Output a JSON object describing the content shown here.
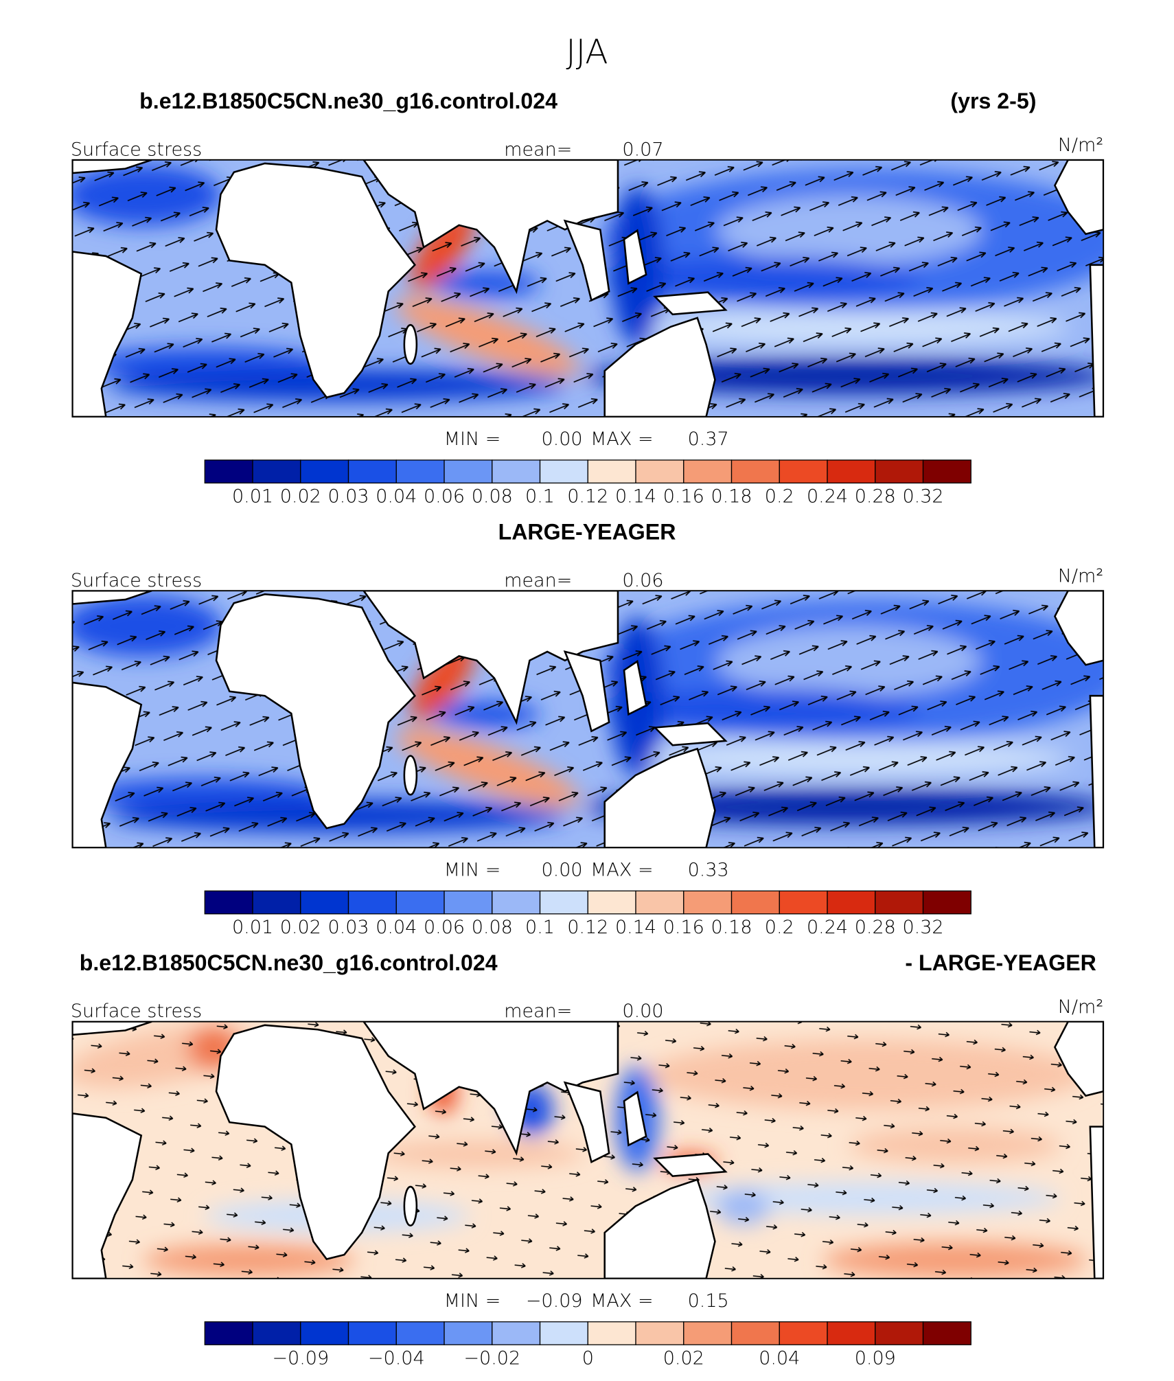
{
  "title": "JJA",
  "panels": [
    {
      "heading_left": "b.e12.B1850C5CN.ne30_g16.control.024",
      "heading_right": "(yrs 2-5)",
      "variable": "Surface stress",
      "mean_label": "mean=",
      "mean": "0.07",
      "units": "N/m²",
      "min_label": "MIN =",
      "min": "0.00",
      "max_label": "MAX =",
      "max": "0.37",
      "colorbar": {
        "colors": [
          "#00007f",
          "#0020a8",
          "#0035d0",
          "#1a50e6",
          "#3a6ef0",
          "#6b96f5",
          "#9bb8f7",
          "#cde0fb",
          "#fde6d2",
          "#f9c5a8",
          "#f59c76",
          "#f0764d",
          "#ec4a24",
          "#d82a10",
          "#b01808",
          "#7f0000"
        ],
        "labels": [
          "0.01",
          "0.02",
          "0.03",
          "0.04",
          "0.06",
          "0.08",
          "0.1",
          "0.12",
          "0.14",
          "0.16",
          "0.18",
          "0.2",
          "0.24",
          "0.28",
          "0.32"
        ]
      }
    },
    {
      "heading_center": "LARGE-YEAGER",
      "variable": "Surface stress",
      "mean_label": "mean=",
      "mean": "0.06",
      "units": "N/m²",
      "min_label": "MIN =",
      "min": "0.00",
      "max_label": "MAX =",
      "max": "0.33",
      "colorbar": {
        "colors": [
          "#00007f",
          "#0020a8",
          "#0035d0",
          "#1a50e6",
          "#3a6ef0",
          "#6b96f5",
          "#9bb8f7",
          "#cde0fb",
          "#fde6d2",
          "#f9c5a8",
          "#f59c76",
          "#f0764d",
          "#ec4a24",
          "#d82a10",
          "#b01808",
          "#7f0000"
        ],
        "labels": [
          "0.01",
          "0.02",
          "0.03",
          "0.04",
          "0.06",
          "0.08",
          "0.1",
          "0.12",
          "0.14",
          "0.16",
          "0.18",
          "0.2",
          "0.24",
          "0.28",
          "0.32"
        ]
      }
    },
    {
      "heading_left": "b.e12.B1850C5CN.ne30_g16.control.024",
      "heading_right": "- LARGE-YEAGER",
      "variable": "Surface stress",
      "mean_label": "mean=",
      "mean": "0.00",
      "units": "N/m²",
      "min_label": "MIN =",
      "min": "−0.09",
      "max_label": "MAX =",
      "max": "0.15",
      "colorbar": {
        "colors": [
          "#00007f",
          "#0020a8",
          "#0035d0",
          "#1a50e6",
          "#3a6ef0",
          "#6b96f5",
          "#9bb8f7",
          "#cde0fb",
          "#fde6d2",
          "#f9c5a8",
          "#f59c76",
          "#f0764d",
          "#ec4a24",
          "#d82a10",
          "#b01808",
          "#7f0000"
        ],
        "labels": [
          null,
          "−0.09",
          null,
          "−0.04",
          null,
          "−0.02",
          null,
          "0",
          null,
          "0.02",
          null,
          "0.04",
          null,
          "0.09",
          null
        ]
      }
    }
  ]
}
